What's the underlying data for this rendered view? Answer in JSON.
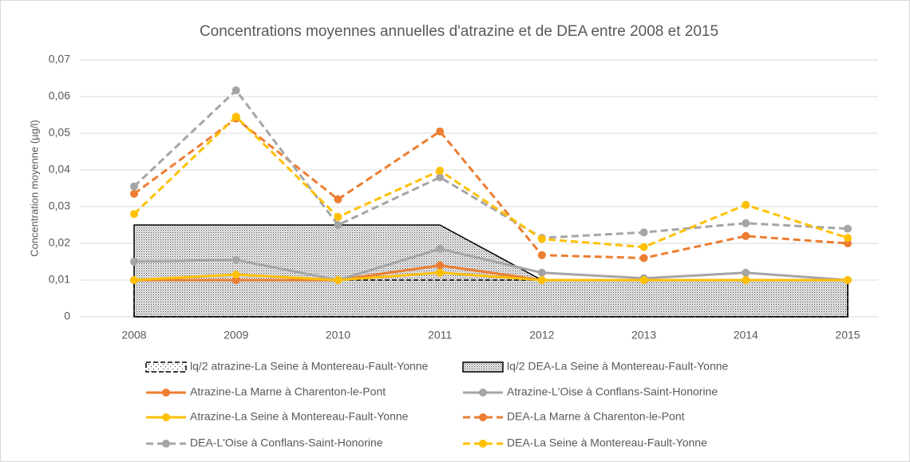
{
  "chart_data": {
    "type": "line",
    "title": "Concentrations moyennes annuelles d'atrazine et de DEA entre 2008 et 2015",
    "y_label": "Concentration moyenne (µg/l)",
    "categories": [
      "2008",
      "2009",
      "2010",
      "2011",
      "2012",
      "2013",
      "2014",
      "2015"
    ],
    "ylim": [
      0,
      0.07
    ],
    "yticks": [
      0,
      {
        "value": 0.01,
        "label": "0,01"
      },
      {
        "value": 0.02,
        "label": "0,02"
      },
      {
        "value": 0.03,
        "label": "0,03"
      },
      {
        "value": 0.04,
        "label": "0,04"
      },
      {
        "value": 0.05,
        "label": "0,05"
      },
      {
        "value": 0.06,
        "label": "0,06"
      },
      {
        "value": 0.07,
        "label": "0,07"
      }
    ],
    "grid": true,
    "legend": "bottom",
    "series": [
      {
        "name": "lq/2 atrazine-La Seine à Montereau-Fault-Yonne",
        "kind": "area",
        "pattern": "sparse",
        "dashed": true,
        "color": "#000000",
        "values": [
          0.01,
          0.01,
          0.01,
          0.01,
          0.01,
          0.01,
          0.01,
          0.01
        ]
      },
      {
        "name": "lq/2 DEA-La Seine à Montereau-Fault-Yonne",
        "kind": "area",
        "pattern": "dense",
        "dashed": false,
        "color": "#000000",
        "values": [
          0.025,
          0.025,
          0.025,
          0.025,
          0.01,
          0.01,
          0.01,
          0.01
        ]
      },
      {
        "name": "Atrazine-La Marne à Charenton-le-Pont",
        "kind": "line",
        "dashed": false,
        "color": "#ED7D31",
        "values": [
          0.01,
          0.01,
          0.01,
          0.014,
          0.01,
          0.01,
          0.01,
          0.01
        ]
      },
      {
        "name": "Atrazine-L'Oise à Conflans-Saint-Honorine",
        "kind": "line",
        "dashed": false,
        "color": "#A5A5A5",
        "values": [
          0.015,
          0.0155,
          0.01,
          0.0185,
          0.012,
          0.0105,
          0.012,
          0.01
        ]
      },
      {
        "name": "Atrazine-La Seine à Montereau-Fault-Yonne",
        "kind": "line",
        "dashed": false,
        "color": "#FFC000",
        "values": [
          0.01,
          0.0115,
          0.01,
          0.012,
          0.01,
          0.01,
          0.01,
          0.01
        ]
      },
      {
        "name": "DEA-La Marne à Charenton-le-Pont",
        "kind": "line",
        "dashed": true,
        "color": "#ED7D31",
        "values": [
          0.0335,
          0.054,
          0.032,
          0.0505,
          0.0168,
          0.016,
          0.022,
          0.02
        ]
      },
      {
        "name": "DEA-L'Oise à Conflans-Saint-Honorine",
        "kind": "line",
        "dashed": true,
        "color": "#A5A5A5",
        "values": [
          0.0355,
          0.0617,
          0.025,
          0.038,
          0.0215,
          0.023,
          0.0255,
          0.024
        ]
      },
      {
        "name": "DEA-La Seine à Montereau-Fault-Yonne",
        "kind": "line",
        "dashed": true,
        "color": "#FFC000",
        "values": [
          0.028,
          0.0545,
          0.0272,
          0.0398,
          0.0212,
          0.019,
          0.0305,
          0.0215
        ]
      }
    ]
  }
}
